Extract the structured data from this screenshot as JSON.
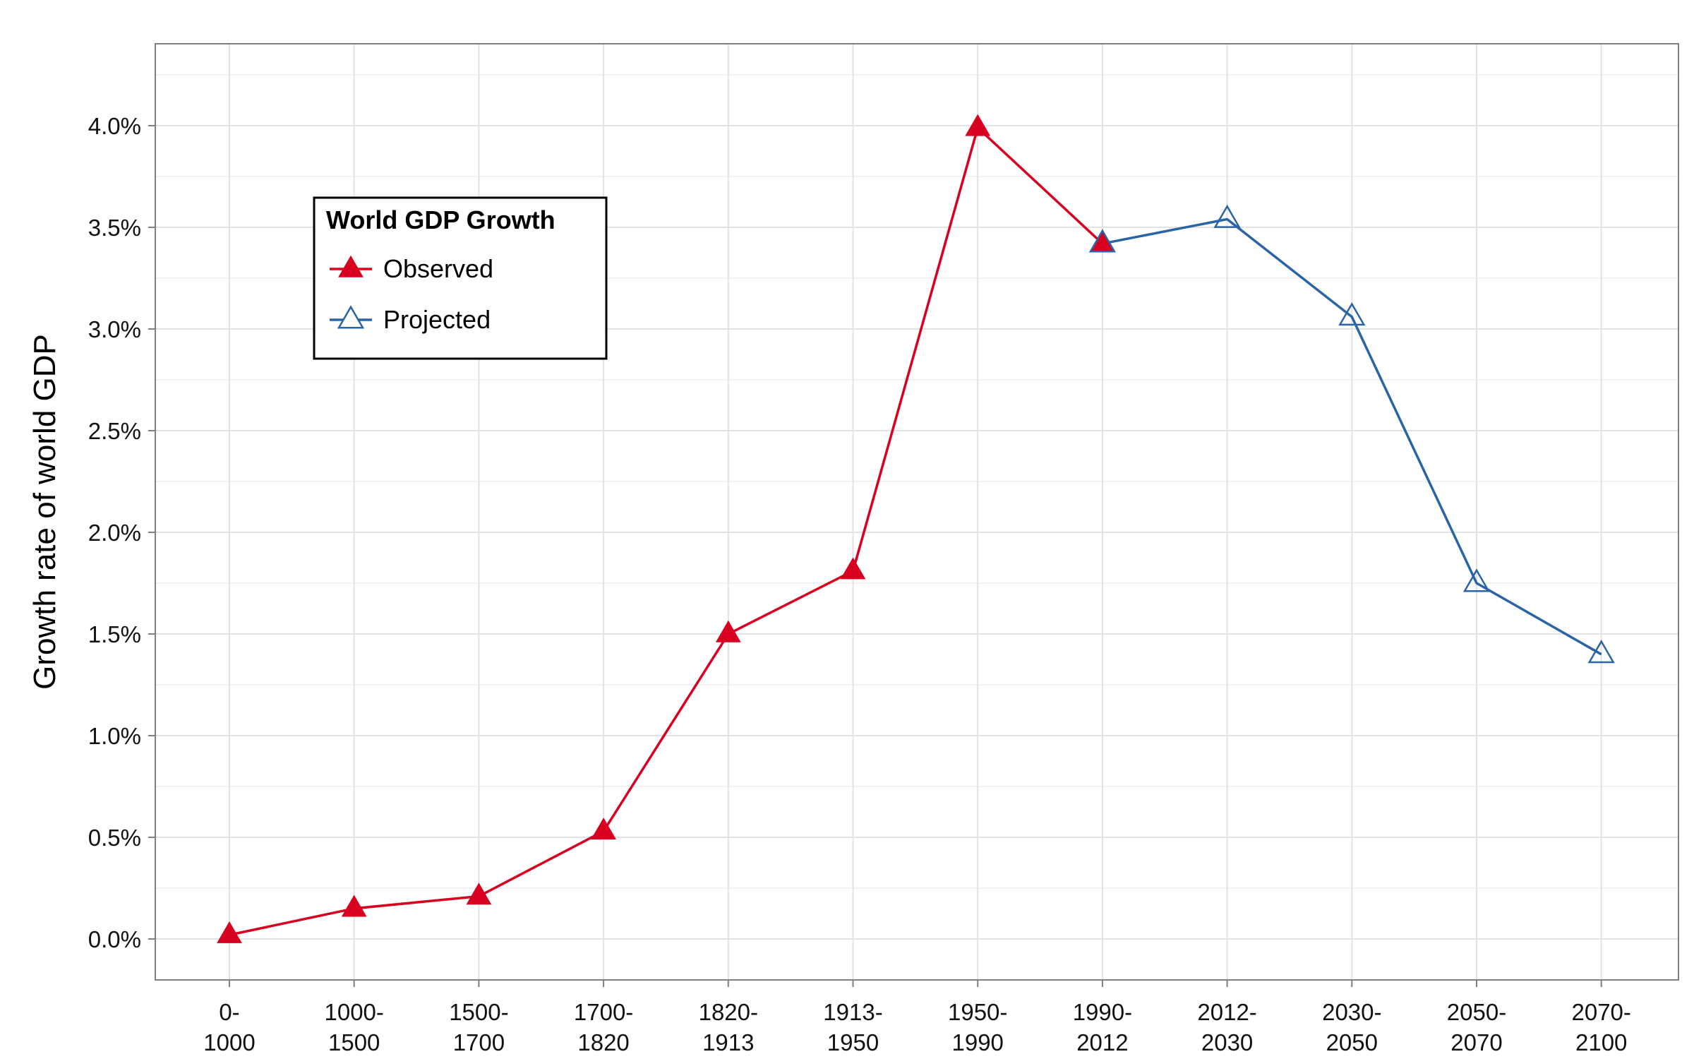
{
  "chart_data": {
    "type": "line",
    "title": "",
    "xlabel": "",
    "ylabel": "Growth rate of world GDP",
    "ylim": [
      -0.2,
      4.4
    ],
    "y_ticks": [
      0.0,
      0.5,
      1.0,
      1.5,
      2.0,
      2.5,
      3.0,
      3.5,
      4.0
    ],
    "y_tick_labels": [
      "0.0%",
      "0.5%",
      "1.0%",
      "1.5%",
      "2.0%",
      "2.5%",
      "3.0%",
      "3.5%",
      "4.0%"
    ],
    "categories": [
      [
        "0-",
        "1000"
      ],
      [
        "1000-",
        "1500"
      ],
      [
        "1500-",
        "1700"
      ],
      [
        "1700-",
        "1820"
      ],
      [
        "1820-",
        "1913"
      ],
      [
        "1913-",
        "1950"
      ],
      [
        "1950-",
        "1990"
      ],
      [
        "1990-",
        "2012"
      ],
      [
        "2012-",
        "2030"
      ],
      [
        "2030-",
        "2050"
      ],
      [
        "2050-",
        "2070"
      ],
      [
        "2070-",
        "2100"
      ]
    ],
    "grid": true,
    "legend": {
      "title": "World GDP Growth",
      "placement": "top-left"
    },
    "series": [
      {
        "name": "Observed",
        "color": "#d7001e",
        "marker": "filled-triangle",
        "points": [
          [
            0,
            0.02
          ],
          [
            1,
            0.15
          ],
          [
            2,
            0.21
          ],
          [
            3,
            0.53
          ],
          [
            4,
            1.5
          ],
          [
            5,
            1.81
          ],
          [
            6,
            3.99
          ],
          [
            7,
            3.42
          ]
        ]
      },
      {
        "name": "Projected",
        "color": "#2b64a6",
        "marker": "open-triangle",
        "points": [
          [
            7,
            3.42
          ],
          [
            8,
            3.54
          ],
          [
            9,
            3.06
          ],
          [
            10,
            1.75
          ],
          [
            11,
            1.4
          ]
        ]
      }
    ]
  }
}
